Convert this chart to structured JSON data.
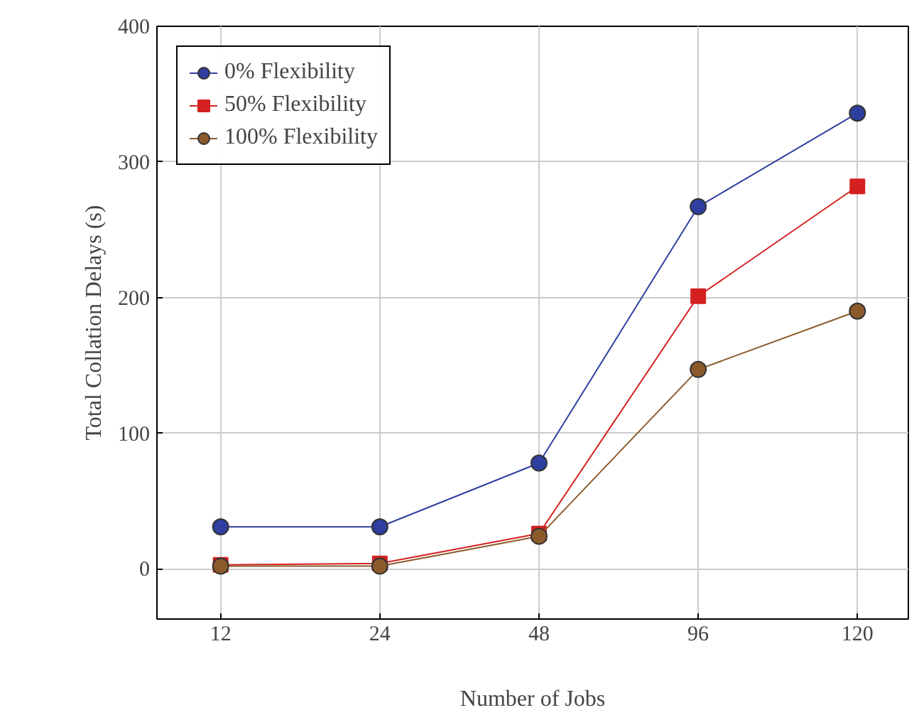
{
  "chart_data": {
    "type": "line",
    "xlabel": "Number of Jobs",
    "ylabel": "Total Collation Delays (s)",
    "categories": [
      "12",
      "24",
      "48",
      "96",
      "120"
    ],
    "ylim": [
      -37,
      400
    ],
    "yticks": [
      0,
      100,
      200,
      300,
      400
    ],
    "grid": true,
    "legend": "top left",
    "line_style": "solid",
    "series": [
      {
        "name": "0% Flexibility",
        "color": "#2f3fa0",
        "marker": "circle",
        "values": [
          31,
          31,
          78,
          267,
          336
        ]
      },
      {
        "name": "50% Flexibility",
        "color": "#d42020",
        "marker": "square",
        "values": [
          3,
          4,
          26,
          201,
          282
        ]
      },
      {
        "name": "100% Flexibility",
        "color": "#8b5a2b",
        "marker": "circle",
        "values": [
          2,
          2,
          24,
          147,
          190
        ]
      }
    ]
  }
}
